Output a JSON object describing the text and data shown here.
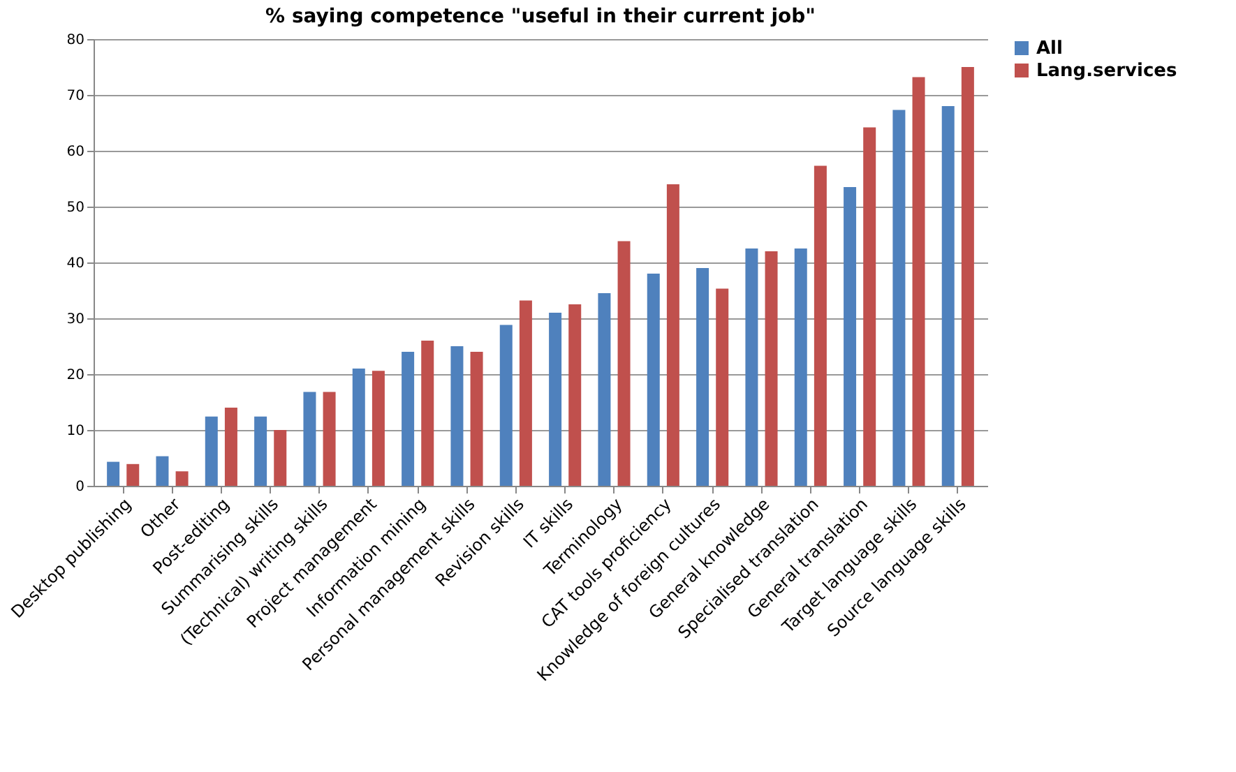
{
  "chart_data": {
    "type": "bar",
    "title": "% saying competence \"useful in their current job\"",
    "categories": [
      "Desktop publishing",
      "Other",
      "Post-editing",
      "Summarising skills",
      "(Technical) writing skills",
      "Project management",
      "Information mining",
      "Personal management skills",
      "Revision skills",
      "IT skills",
      "Terminology",
      "CAT tools proficiency",
      "Knowledge of foreign cultures",
      "General knowledge",
      "Specialised translation",
      "General translation",
      "Target language skills",
      "Source language skills"
    ],
    "series": [
      {
        "name": "All",
        "color": "#4f81bd",
        "values": [
          4.3,
          5.3,
          12.4,
          12.4,
          16.8,
          21,
          24,
          25,
          28.8,
          31,
          34.5,
          38,
          39,
          42.5,
          42.5,
          53.5,
          67.3,
          68
        ]
      },
      {
        "name": "Lang.services",
        "color": "#c0504d",
        "values": [
          3.9,
          2.6,
          14,
          10,
          16.8,
          20.6,
          26,
          24,
          33.2,
          32.5,
          43.8,
          54,
          35.3,
          42,
          57.3,
          64.2,
          73.2,
          75
        ]
      }
    ],
    "ylim": [
      0,
      80
    ],
    "yticks": [
      0,
      10,
      20,
      30,
      40,
      50,
      60,
      70,
      80
    ],
    "grid": "y",
    "legend": "right"
  }
}
